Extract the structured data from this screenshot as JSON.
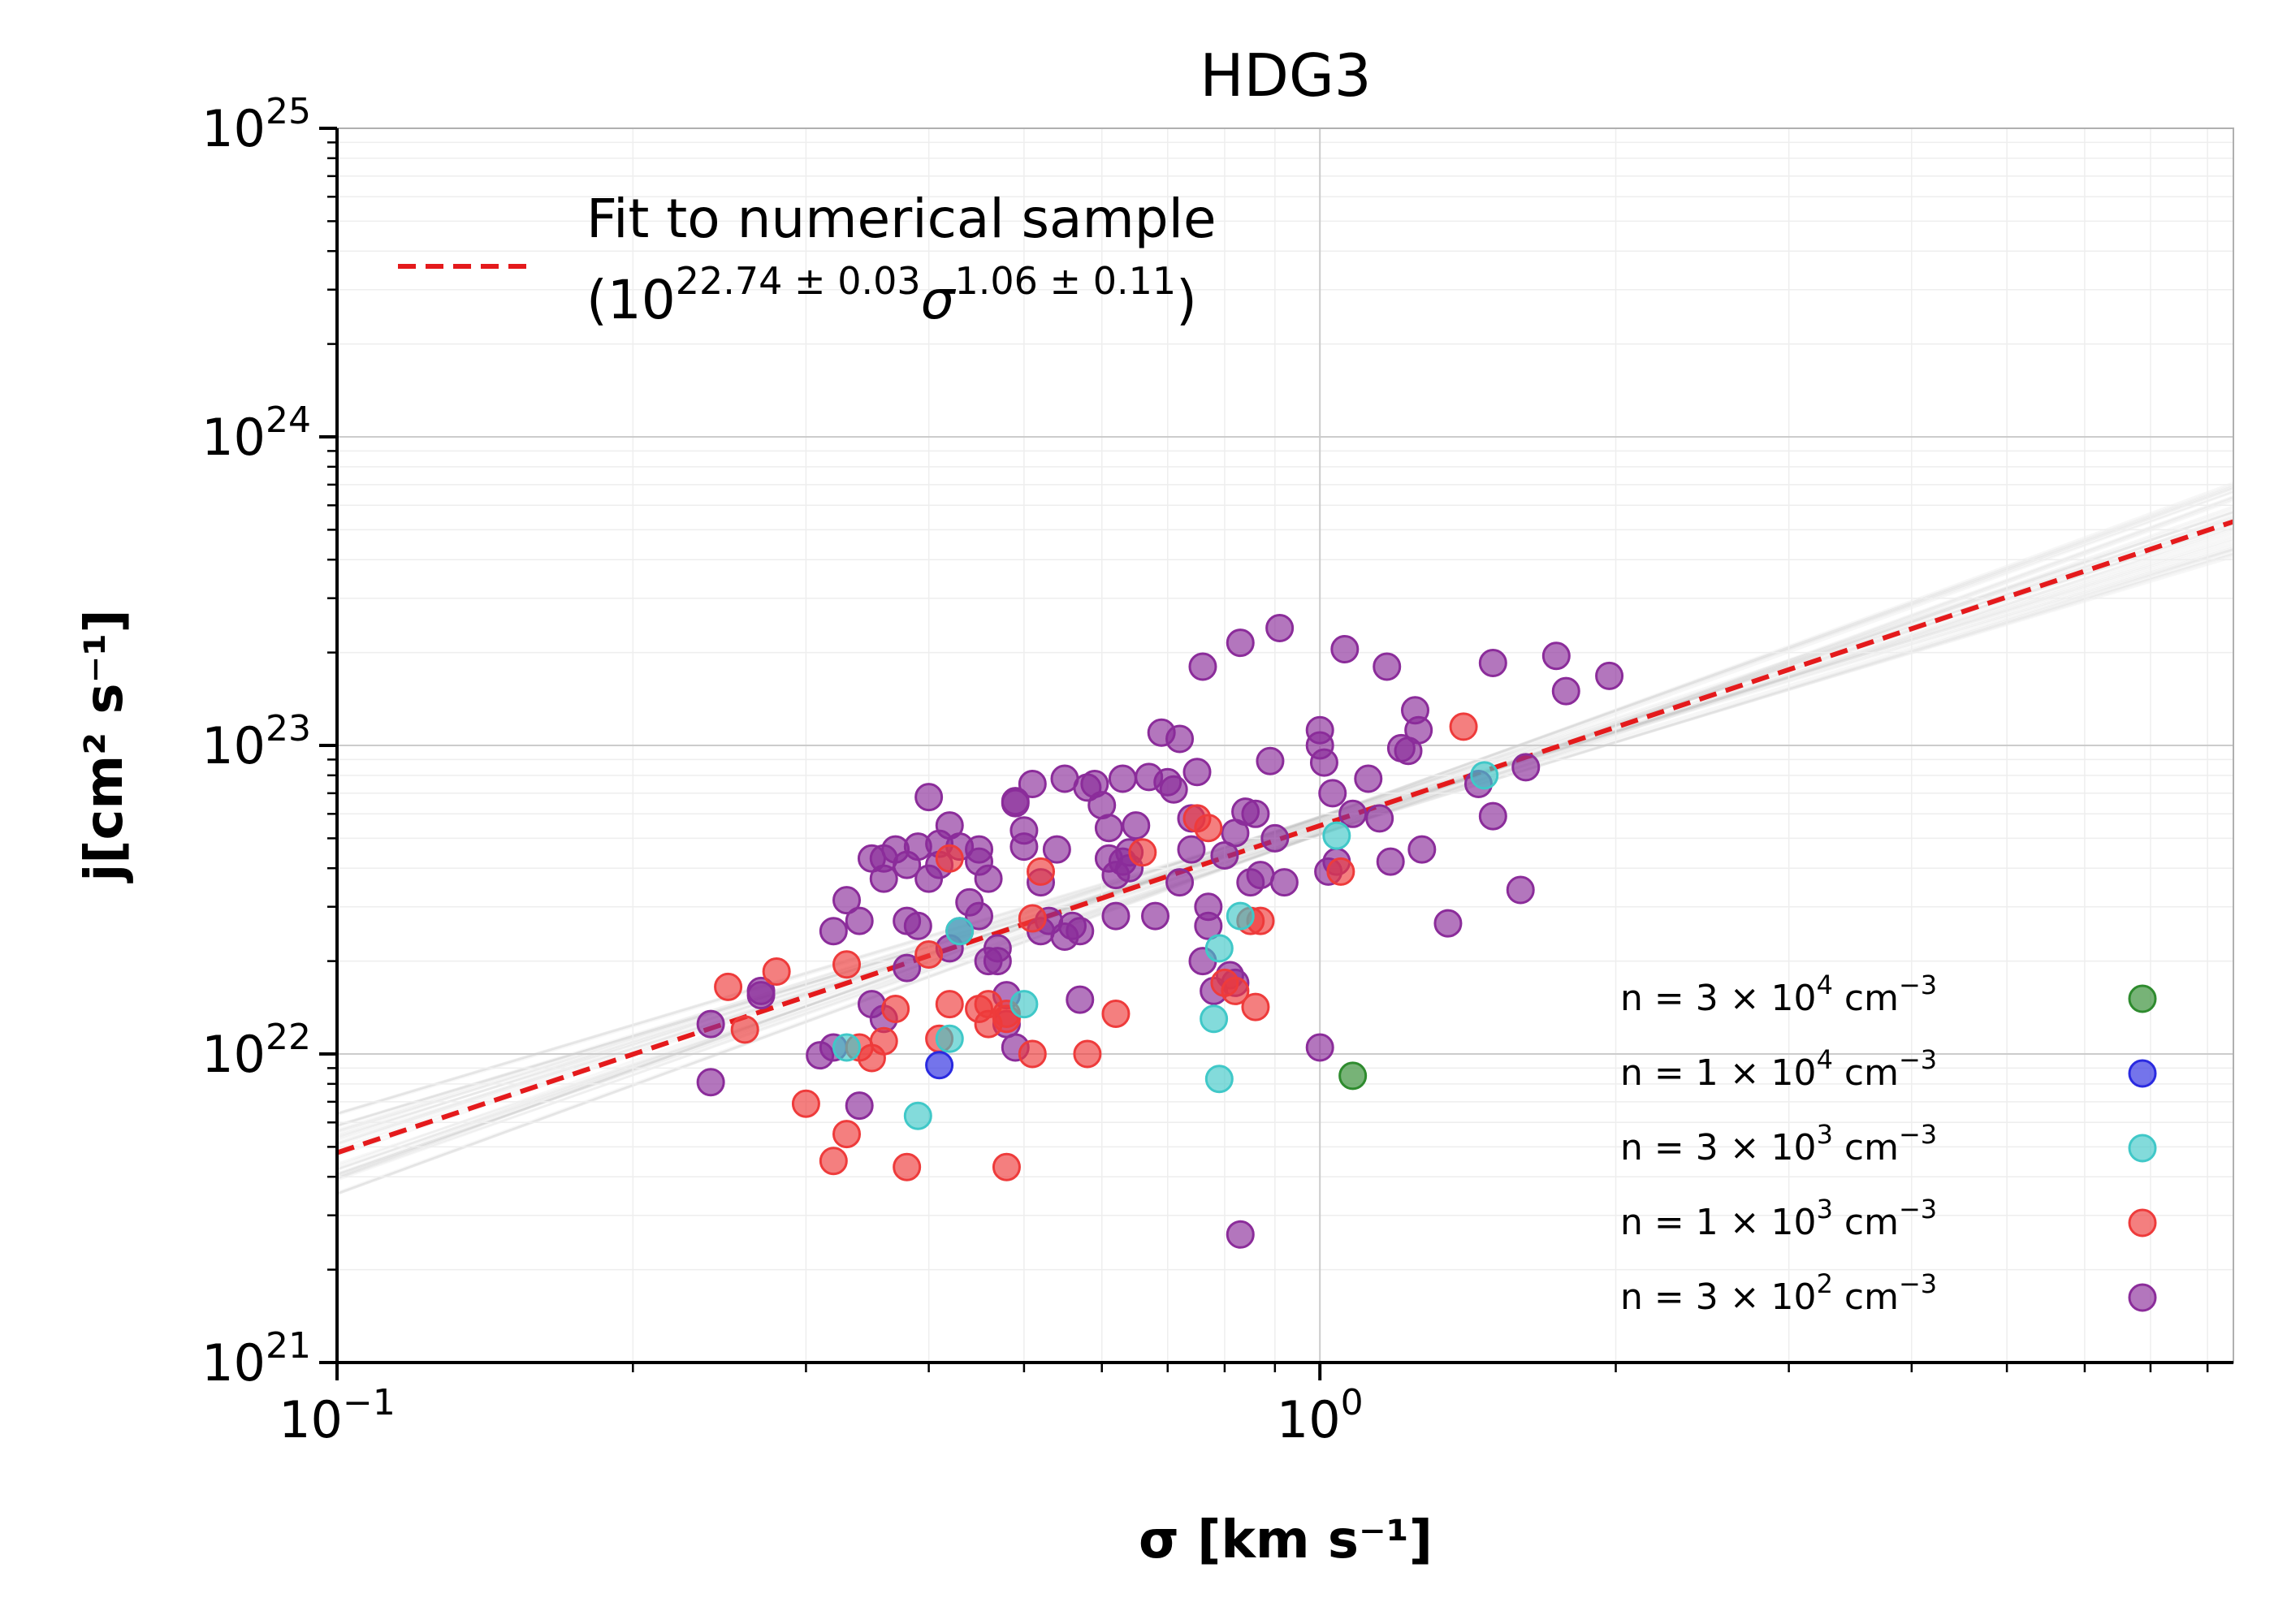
{
  "chart_data": {
    "type": "scatter",
    "title": "HDG3",
    "xlabel": "σ [km s⁻¹]",
    "ylabel": "j[cm² s⁻¹]",
    "x_scale": "log",
    "y_scale": "log",
    "xlim": [
      0.1,
      8.5
    ],
    "ylim": [
      1e+21,
      1e+25
    ],
    "x_ticks": [
      {
        "value": 0.1,
        "base": "10",
        "exp": "−1"
      },
      {
        "value": 1,
        "base": "10",
        "exp": "0"
      }
    ],
    "y_ticks": [
      {
        "value": 1e+21,
        "base": "10",
        "exp": "21"
      },
      {
        "value": 1e+22,
        "base": "10",
        "exp": "22"
      },
      {
        "value": 1e+23,
        "base": "10",
        "exp": "23"
      },
      {
        "value": 1e+24,
        "base": "10",
        "exp": "24"
      },
      {
        "value": 1e+25,
        "base": "10",
        "exp": "25"
      }
    ],
    "grid": true,
    "fit": {
      "label_line1": "Fit to numerical sample",
      "label_line2": "(10^{22.74 ± 0.03} σ^{1.06 ± 0.11})",
      "label_open": "(10",
      "label_exp1": "22.74 ± 0.03",
      "label_sigma": "σ",
      "label_exp2": "1.06 ± 0.11",
      "label_close": ")",
      "log_intercept": 22.74,
      "slope": 1.06,
      "color": "#e41a1c",
      "legend_position": "top-left"
    },
    "series_legend_position": "lower-right",
    "series": [
      {
        "name": "n = 3 × 10⁴ cm⁻³",
        "legend": {
          "prefix": "n  = 3 × 10",
          "exp": "4",
          "unit": " cm",
          "unit_exp": "−3"
        },
        "color": "#2e8b2e",
        "points": [
          [
            1.08,
            8.5e+21
          ]
        ]
      },
      {
        "name": "n = 1 × 10⁴ cm⁻³",
        "legend": {
          "prefix": "n  = 1 × 10",
          "exp": "4",
          "unit": " cm",
          "unit_exp": "−3"
        },
        "color": "#2a2ae0",
        "points": [
          [
            0.41,
            9.2e+21
          ]
        ]
      },
      {
        "name": "n = 3 × 10³ cm⁻³",
        "legend": {
          "prefix": "n  = 3 × 10",
          "exp": "3",
          "unit": " cm",
          "unit_exp": "−3"
        },
        "color": "#40c8c8",
        "points": [
          [
            0.33,
            1.05e+22
          ],
          [
            0.39,
            6.3e+21
          ],
          [
            0.42,
            1.12e+22
          ],
          [
            0.5,
            1.45e+22
          ],
          [
            0.78,
            1.3e+22
          ],
          [
            0.79,
            8.3e+21
          ],
          [
            0.79,
            2.2e+22
          ],
          [
            0.83,
            2.8e+22
          ],
          [
            1.04,
            5.1e+22
          ],
          [
            1.47,
            8e+22
          ],
          [
            0.43,
            2.5e+22
          ]
        ]
      },
      {
        "name": "n = 1 × 10³ cm⁻³",
        "legend": {
          "prefix": "n  = 1 × 10",
          "exp": "3",
          "unit": " cm",
          "unit_exp": "−3"
        },
        "color": "#ee3b3b",
        "points": [
          [
            0.25,
            1.65e+22
          ],
          [
            0.26,
            1.2e+22
          ],
          [
            0.28,
            1.85e+22
          ],
          [
            0.3,
            6.9e+21
          ],
          [
            0.32,
            4.5e+21
          ],
          [
            0.33,
            5.5e+21
          ],
          [
            0.33,
            1.95e+22
          ],
          [
            0.34,
            1.05e+22
          ],
          [
            0.35,
            9.7e+21
          ],
          [
            0.36,
            1.1e+22
          ],
          [
            0.37,
            1.4e+22
          ],
          [
            0.38,
            4.3e+21
          ],
          [
            0.4,
            2.1e+22
          ],
          [
            0.41,
            1.12e+22
          ],
          [
            0.42,
            1.45e+22
          ],
          [
            0.42,
            4.3e+22
          ],
          [
            0.45,
            1.4e+22
          ],
          [
            0.46,
            1.25e+22
          ],
          [
            0.46,
            1.45e+22
          ],
          [
            0.48,
            1.3e+22
          ],
          [
            0.48,
            1.35e+22
          ],
          [
            0.48,
            4.3e+21
          ],
          [
            0.51,
            1e+22
          ],
          [
            0.51,
            2.75e+22
          ],
          [
            0.52,
            3.9e+22
          ],
          [
            0.58,
            1e+22
          ],
          [
            0.62,
            1.35e+22
          ],
          [
            0.66,
            4.5e+22
          ],
          [
            0.75,
            5.8e+22
          ],
          [
            0.77,
            5.4e+22
          ],
          [
            0.8,
            1.7e+22
          ],
          [
            0.82,
            1.6e+22
          ],
          [
            0.85,
            2.7e+22
          ],
          [
            0.86,
            1.42e+22
          ],
          [
            0.87,
            2.7e+22
          ],
          [
            1.05,
            3.9e+22
          ],
          [
            1.4,
            1.15e+23
          ]
        ]
      },
      {
        "name": "n = 3 × 10² cm⁻³",
        "legend": {
          "prefix": "n  = 3 × 10",
          "exp": "2",
          "unit": " cm",
          "unit_exp": "−3"
        },
        "color": "#8b2c9a",
        "points": [
          [
            0.24,
            8.1e+21
          ],
          [
            0.24,
            1.25e+22
          ],
          [
            0.27,
            1.6e+22
          ],
          [
            0.27,
            1.55e+22
          ],
          [
            0.31,
            9.9e+21
          ],
          [
            0.32,
            1.05e+22
          ],
          [
            0.32,
            2.5e+22
          ],
          [
            0.33,
            3.15e+22
          ],
          [
            0.34,
            2.7e+22
          ],
          [
            0.34,
            6.8e+21
          ],
          [
            0.35,
            4.3e+22
          ],
          [
            0.35,
            1.45e+22
          ],
          [
            0.36,
            1.3e+22
          ],
          [
            0.36,
            3.7e+22
          ],
          [
            0.36,
            4.3e+22
          ],
          [
            0.37,
            4.6e+22
          ],
          [
            0.38,
            2.7e+22
          ],
          [
            0.38,
            4.1e+22
          ],
          [
            0.38,
            1.9e+22
          ],
          [
            0.39,
            4.7e+22
          ],
          [
            0.39,
            2.6e+22
          ],
          [
            0.4,
            6.8e+22
          ],
          [
            0.4,
            3.7e+22
          ],
          [
            0.41,
            4.1e+22
          ],
          [
            0.41,
            4.8e+22
          ],
          [
            0.42,
            5.5e+22
          ],
          [
            0.42,
            2.2e+22
          ],
          [
            0.43,
            4.7e+22
          ],
          [
            0.43,
            2.5e+22
          ],
          [
            0.44,
            3.1e+22
          ],
          [
            0.45,
            2.8e+22
          ],
          [
            0.45,
            4.2e+22
          ],
          [
            0.45,
            4.6e+22
          ],
          [
            0.46,
            2e+22
          ],
          [
            0.46,
            3.7e+22
          ],
          [
            0.47,
            2e+22
          ],
          [
            0.47,
            2.2e+22
          ],
          [
            0.48,
            1.55e+22
          ],
          [
            0.48,
            1.25e+22
          ],
          [
            0.49,
            1.05e+22
          ],
          [
            0.49,
            6.5e+22
          ],
          [
            0.49,
            6.6e+22
          ],
          [
            0.5,
            4.7e+22
          ],
          [
            0.5,
            5.3e+22
          ],
          [
            0.51,
            7.5e+22
          ],
          [
            0.52,
            3.6e+22
          ],
          [
            0.52,
            2.5e+22
          ],
          [
            0.53,
            2.7e+22
          ],
          [
            0.54,
            4.6e+22
          ],
          [
            0.55,
            7.8e+22
          ],
          [
            0.56,
            2.6e+22
          ],
          [
            0.57,
            2.5e+22
          ],
          [
            0.57,
            1.5e+22
          ],
          [
            0.58,
            7.3e+22
          ],
          [
            0.59,
            7.5e+22
          ],
          [
            0.6,
            6.4e+22
          ],
          [
            0.61,
            5.4e+22
          ],
          [
            0.61,
            4.3e+22
          ],
          [
            0.62,
            2.8e+22
          ],
          [
            0.62,
            3.8e+22
          ],
          [
            0.63,
            7.8e+22
          ],
          [
            0.64,
            4e+22
          ],
          [
            0.64,
            4.5e+22
          ],
          [
            0.65,
            5.5e+22
          ],
          [
            0.67,
            7.9e+22
          ],
          [
            0.68,
            2.8e+22
          ],
          [
            0.69,
            1.1e+23
          ],
          [
            0.7,
            7.6e+22
          ],
          [
            0.71,
            7.2e+22
          ],
          [
            0.72,
            1.05e+23
          ],
          [
            0.72,
            3.6e+22
          ],
          [
            0.74,
            4.6e+22
          ],
          [
            0.75,
            8.2e+22
          ],
          [
            0.76,
            1.8e+23
          ],
          [
            0.76,
            2e+22
          ],
          [
            0.77,
            2.6e+22
          ],
          [
            0.77,
            3e+22
          ],
          [
            0.78,
            1.6e+22
          ],
          [
            0.8,
            4.4e+22
          ],
          [
            0.81,
            1.8e+22
          ],
          [
            0.82,
            5.2e+22
          ],
          [
            0.82,
            1.7e+22
          ],
          [
            0.83,
            2.15e+23
          ],
          [
            0.84,
            6.1e+22
          ],
          [
            0.85,
            3.6e+22
          ],
          [
            0.86,
            6e+22
          ],
          [
            0.87,
            3.8e+22
          ],
          [
            0.89,
            8.9e+22
          ],
          [
            0.9,
            5e+22
          ],
          [
            0.91,
            2.4e+23
          ],
          [
            0.92,
            3.6e+22
          ],
          [
            0.83,
            2.6e+21
          ],
          [
            1.0,
            1.05e+22
          ],
          [
            1.0,
            1.12e+23
          ],
          [
            1.0,
            1e+23
          ],
          [
            1.01,
            8.8e+22
          ],
          [
            1.02,
            3.9e+22
          ],
          [
            1.03,
            7e+22
          ],
          [
            1.04,
            4.2e+22
          ],
          [
            1.06,
            2.05e+23
          ],
          [
            1.08,
            6e+22
          ],
          [
            1.12,
            7.8e+22
          ],
          [
            1.15,
            5.8e+22
          ],
          [
            1.17,
            1.8e+23
          ],
          [
            1.18,
            4.2e+22
          ],
          [
            1.21,
            9.8e+22
          ],
          [
            1.23,
            9.6e+22
          ],
          [
            1.25,
            1.3e+23
          ],
          [
            1.26,
            1.12e+23
          ],
          [
            1.27,
            4.6e+22
          ],
          [
            1.35,
            2.65e+22
          ],
          [
            1.45,
            7.5e+22
          ],
          [
            1.5,
            1.85e+23
          ],
          [
            1.5,
            5.9e+22
          ],
          [
            1.6,
            3.4e+22
          ],
          [
            1.62,
            8.5e+22
          ],
          [
            1.74,
            1.95e+23
          ],
          [
            1.78,
            1.5e+23
          ],
          [
            1.97,
            1.68e+23
          ],
          [
            0.63,
            4.2e+22
          ],
          [
            0.55,
            2.4e+22
          ],
          [
            0.74,
            5.8e+22
          ]
        ]
      }
    ]
  }
}
